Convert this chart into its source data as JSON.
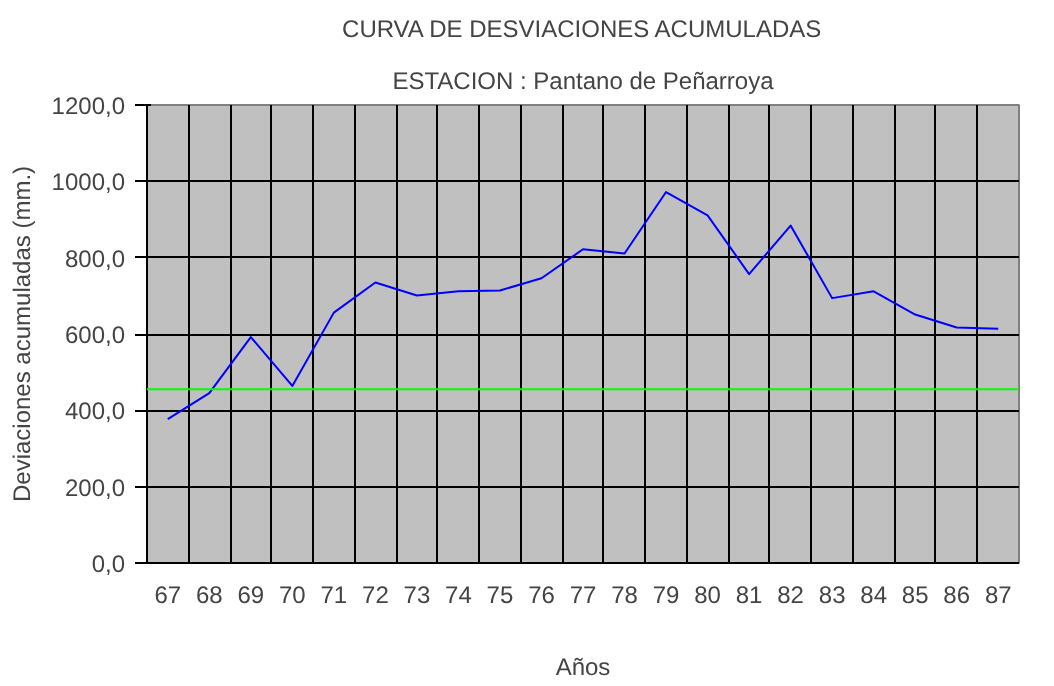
{
  "chart_data": {
    "type": "line",
    "title": "CURVA DE DESVIACIONES ACUMULADAS",
    "subtitle": "ESTACION : Pantano de Peñarroya",
    "xlabel": "Años",
    "ylabel": "Deviaciones acumuladas (mm.)",
    "categories": [
      "67",
      "68",
      "69",
      "70",
      "71",
      "72",
      "73",
      "74",
      "75",
      "76",
      "77",
      "78",
      "79",
      "80",
      "81",
      "82",
      "83",
      "84",
      "85",
      "86",
      "87"
    ],
    "series": [
      {
        "color": "#0000ff",
        "values": [
          377,
          445,
          592,
          464,
          656,
          735,
          701,
          712,
          714,
          746,
          822,
          811,
          972,
          911,
          757,
          884,
          694,
          712,
          651,
          617,
          614
        ]
      }
    ],
    "ylim": [
      0,
      1200
    ],
    "yticks": [
      {
        "value": 0,
        "label": "0,0"
      },
      {
        "value": 200,
        "label": "200,0"
      },
      {
        "value": 400,
        "label": "400,0"
      },
      {
        "value": 600,
        "label": "600,0"
      },
      {
        "value": 800,
        "label": "800,0"
      },
      {
        "value": 1000,
        "label": "1000,0"
      },
      {
        "value": 1200,
        "label": "1200,0"
      }
    ],
    "ref_lines": [
      {
        "axis": "y",
        "value": 455,
        "color": "#00ff00"
      }
    ],
    "grid": true,
    "marker": "none",
    "line_style": "solid"
  }
}
